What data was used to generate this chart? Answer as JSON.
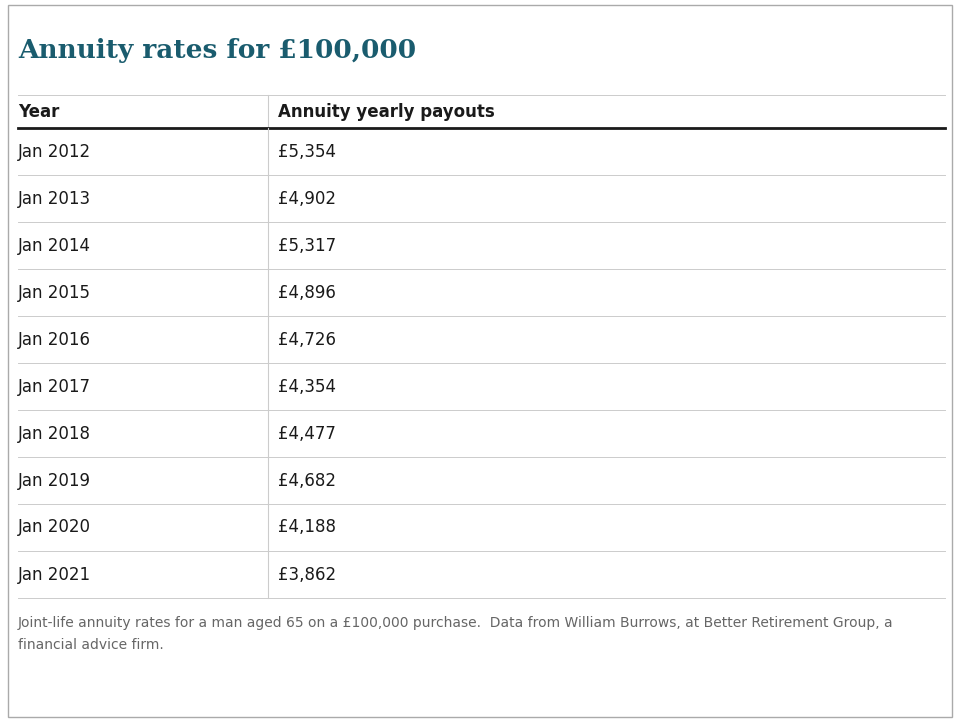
{
  "title": "Annuity rates for £100,000",
  "title_color": "#1a5c6e",
  "col1_header": "Year",
  "col2_header": "Annuity yearly payouts",
  "rows": [
    [
      "Jan 2012",
      "£5,354"
    ],
    [
      "Jan 2013",
      "£4,902"
    ],
    [
      "Jan 2014",
      "£5,317"
    ],
    [
      "Jan 2015",
      "£4,896"
    ],
    [
      "Jan 2016",
      "£4,726"
    ],
    [
      "Jan 2017",
      "£4,354"
    ],
    [
      "Jan 2018",
      "£4,477"
    ],
    [
      "Jan 2019",
      "£4,682"
    ],
    [
      "Jan 2020",
      "£4,188"
    ],
    [
      "Jan 2021",
      "£3,862"
    ]
  ],
  "footnote_line1": "Joint-life annuity rates for a man aged 65 on a £100,000 purchase.  Data from William Burrows, at Better Retirement Group, a",
  "footnote_line2": "financial advice firm.",
  "bg_color": "#ffffff",
  "header_line_color": "#1a1a1a",
  "row_line_color": "#cccccc",
  "header_text_color": "#1a1a1a",
  "data_text_color": "#1a1a1a",
  "footnote_color": "#666666",
  "outer_border_color": "#aaaaaa",
  "title_fontsize": 19,
  "header_fontsize": 12,
  "data_fontsize": 12,
  "footnote_fontsize": 10
}
